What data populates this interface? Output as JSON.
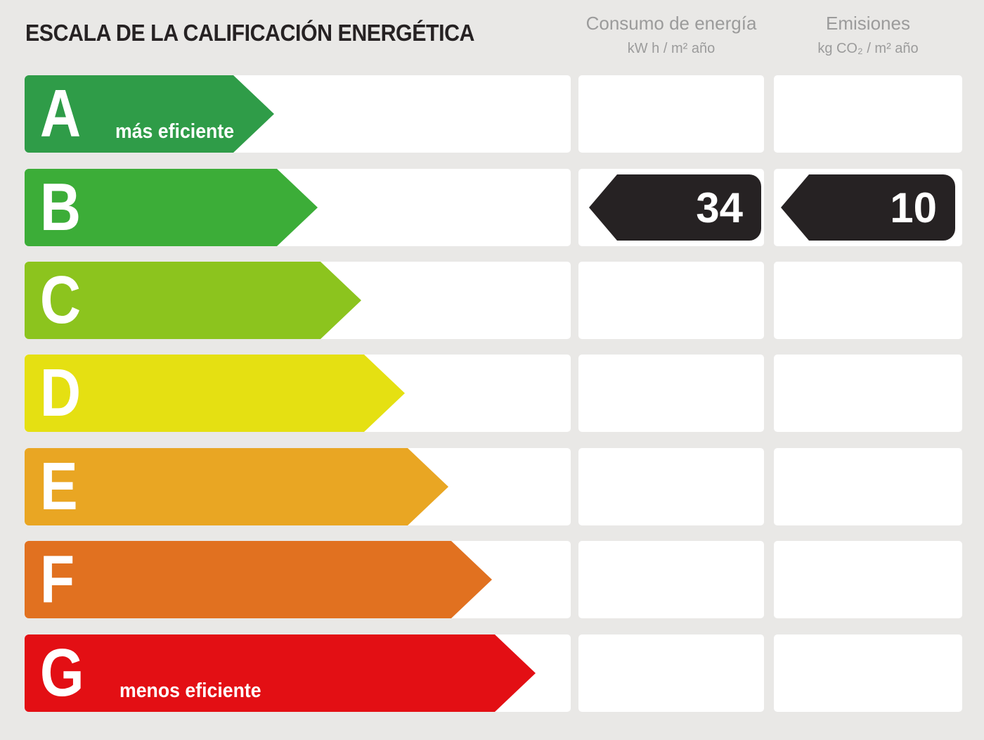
{
  "header": {
    "title": "ESCALA DE LA CALIFICACIÓN ENERGÉTICA",
    "columns": {
      "consumption": {
        "title": "Consumo de energía",
        "unit": "kW h / m² año"
      },
      "emissions": {
        "title": "Emisiones",
        "unit": "kg CO₂ / m² año"
      }
    }
  },
  "rating": {
    "letter": "B",
    "consumption_value": "34",
    "emissions_value": "10"
  },
  "scale": [
    {
      "letter": "A",
      "note": "más eficiente",
      "color": "#2f9c48",
      "body_width": 297
    },
    {
      "letter": "B",
      "color": "#3cad38",
      "body_width": 359
    },
    {
      "letter": "C",
      "color": "#8cc41e",
      "body_width": 421
    },
    {
      "letter": "D",
      "color": "#e5e012",
      "body_width": 483
    },
    {
      "letter": "E",
      "color": "#e9a623",
      "body_width": 545
    },
    {
      "letter": "F",
      "color": "#e17120",
      "body_width": 607
    },
    {
      "letter": "G",
      "note": "menos eficiente",
      "color": "#e30f14",
      "body_width": 669
    }
  ],
  "colors": {
    "background": "#e9e8e6",
    "cell": "#ffffff",
    "value_arrow": "#262223",
    "header_text": "#9b9b9b",
    "title_text": "#262223"
  },
  "chart_data": {
    "type": "bar",
    "title": "ESCALA DE LA CALIFICACIÓN ENERGÉTICA",
    "categories": [
      "A",
      "B",
      "C",
      "D",
      "E",
      "F",
      "G"
    ],
    "values": [
      1,
      2,
      3,
      4,
      5,
      6,
      7
    ],
    "value_note": "ordinal arrow lengths, A shortest (más eficiente) to G longest (menos eficiente)",
    "bar_colors": [
      "#2f9c48",
      "#3cad38",
      "#8cc41e",
      "#e5e012",
      "#e9a623",
      "#e17120",
      "#e30f14"
    ],
    "annotations": [
      "A: más eficiente",
      "G: menos eficiente"
    ],
    "columns": [
      "Consumo de energía kW h / m² año",
      "Emisiones kg CO₂ / m² año"
    ],
    "rating": {
      "letter": "B",
      "consumo_kwh_m2_ano": 34,
      "emisiones_kgco2_m2_ano": 10
    }
  }
}
